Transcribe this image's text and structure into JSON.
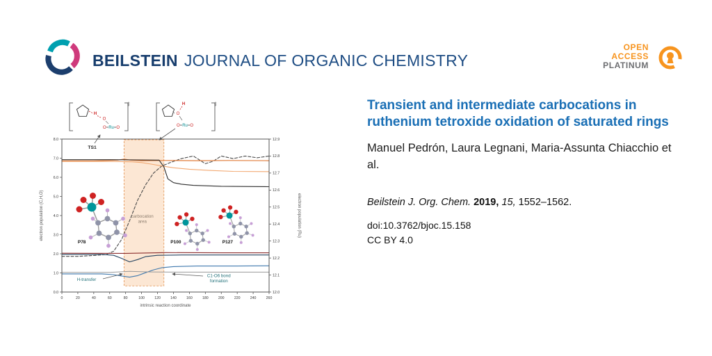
{
  "header": {
    "brand_bold": "BEILSTEIN",
    "brand_rest": "JOURNAL OF ORGANIC CHEMISTRY",
    "open_access": {
      "line1": "OPEN",
      "line2": "ACCESS",
      "line3": "PLATINUM"
    }
  },
  "article": {
    "title": "Transient and intermediate carbocations in ruthenium tetroxide oxidation of saturated rings",
    "authors": "Manuel Pedrón, Laura Legnani, Maria-Assunta Chi­acchio et al.",
    "citation": {
      "journal": "Beilstein J. Org. Chem.",
      "year": "2019,",
      "volume": "15,",
      "pages": "1552–1562."
    },
    "doi": "doi:10.3762/bjoc.15.158",
    "license": "CC BY 4.0"
  },
  "colors": {
    "brand_blue": "#173d6d",
    "title_blue": "#1a6fb5",
    "access_orange": "#f7941e",
    "platinum_gray": "#6d6e71"
  },
  "figure": {
    "structure_labels": {
      "h": "H",
      "o": "O",
      "ru": "Ru",
      "dagger": "‡"
    }
  },
  "chart_data": {
    "type": "line",
    "title": "",
    "xlabel": "intrinsic reaction coordinate",
    "ylabel_left": "electron population (C,H,O)",
    "ylabel_right": "electron population (Ru)",
    "xlim": [
      0,
      260
    ],
    "ylim_left": [
      0,
      8
    ],
    "ylim_right": [
      12.0,
      12.9
    ],
    "grid": false,
    "legend": "none",
    "x_ticks": [
      0,
      20,
      40,
      60,
      80,
      100,
      120,
      140,
      160,
      180,
      200,
      220,
      240,
      260
    ],
    "y_ticks_left": [
      "0.0",
      "1.0",
      "2.0",
      "3.0",
      "4.0",
      "5.0",
      "6.0",
      "7.0",
      "8.0"
    ],
    "y_ticks_right": [
      "12.0",
      "12.1",
      "12.2",
      "12.3",
      "12.4",
      "12.5",
      "12.6",
      "12.7",
      "12.8",
      "12.9"
    ],
    "shaded_region": {
      "x0": 78,
      "x1": 128,
      "label": "carbocation area",
      "fill": "#fbe3cd",
      "border": "#e59b5f"
    },
    "series": [
      {
        "name": "ru-dashed-dark",
        "axis": "right",
        "color": "#4a4a4a",
        "dash": "4,2.5",
        "width": 1.1,
        "x": [
          0,
          20,
          40,
          55,
          65,
          75,
          85,
          95,
          105,
          115,
          125,
          135,
          150,
          165,
          180,
          190,
          200,
          215,
          230,
          245,
          260
        ],
        "y": [
          12.21,
          12.21,
          12.215,
          12.22,
          12.24,
          12.31,
          12.42,
          12.54,
          12.63,
          12.7,
          12.74,
          12.76,
          12.785,
          12.8,
          12.755,
          12.77,
          12.8,
          12.785,
          12.8,
          12.79,
          12.8
        ]
      },
      {
        "name": "orange-upper-flat",
        "axis": "left",
        "color": "#e07b39",
        "width": 1.2,
        "x": [
          0,
          40,
          70,
          78,
          86,
          100,
          130,
          170,
          210,
          260
        ],
        "y": [
          6.86,
          6.86,
          6.9,
          6.95,
          6.9,
          6.87,
          6.88,
          6.87,
          6.88,
          6.87
        ]
      },
      {
        "name": "orange-descending",
        "axis": "left",
        "color": "#f2a76f",
        "width": 1.1,
        "x": [
          0,
          60,
          88,
          100,
          112,
          126,
          140,
          160,
          185,
          215,
          260
        ],
        "y": [
          6.83,
          6.83,
          6.81,
          6.77,
          6.69,
          6.59,
          6.5,
          6.42,
          6.36,
          6.31,
          6.3
        ]
      },
      {
        "name": "black-step-down",
        "axis": "left",
        "color": "#2b2b2b",
        "width": 1.1,
        "x": [
          0,
          60,
          100,
          122,
          128,
          133,
          140,
          150,
          165,
          200,
          260
        ],
        "y": [
          6.92,
          6.92,
          6.91,
          6.9,
          6.55,
          5.92,
          5.72,
          5.64,
          5.58,
          5.53,
          5.51
        ]
      },
      {
        "name": "navy-dip",
        "axis": "left",
        "color": "#24425f",
        "width": 1.1,
        "x": [
          0,
          50,
          65,
          75,
          85,
          95,
          105,
          120,
          150,
          200,
          260
        ],
        "y": [
          1.97,
          1.97,
          1.92,
          1.76,
          1.58,
          1.7,
          1.85,
          1.92,
          1.94,
          1.94,
          1.94
        ]
      },
      {
        "name": "dark-red-flat",
        "axis": "left",
        "color": "#8c2d2d",
        "width": 1.1,
        "x": [
          0,
          80,
          130,
          200,
          260
        ],
        "y": [
          2.03,
          2.02,
          2.06,
          2.05,
          2.05
        ]
      },
      {
        "name": "blue-rising",
        "axis": "left",
        "color": "#3c77ad",
        "width": 1.1,
        "x": [
          0,
          50,
          65,
          75,
          85,
          95,
          105,
          115,
          125,
          140,
          170,
          220,
          260
        ],
        "y": [
          0.95,
          0.95,
          0.91,
          0.84,
          0.78,
          0.86,
          1.01,
          1.16,
          1.27,
          1.33,
          1.36,
          1.36,
          1.37
        ]
      },
      {
        "name": "gray-flat",
        "axis": "left",
        "color": "#9a9a9a",
        "width": 1.0,
        "x": [
          0,
          60,
          85,
          110,
          150,
          260
        ],
        "y": [
          1.03,
          1.03,
          1.08,
          1.05,
          1.04,
          1.04
        ]
      }
    ],
    "annotations": [
      {
        "id": "ts1",
        "lines": [
          "TS1"
        ],
        "x": 38,
        "y": 7.5,
        "size": 6.8,
        "color": "#222222",
        "bold": true
      },
      {
        "id": "carbocation-area",
        "lines": [
          "carbocation",
          "area"
        ],
        "x": 101,
        "y": 3.9,
        "size": 6.2,
        "color": "#8d7e6e",
        "bold": false
      },
      {
        "id": "h-transfer",
        "lines": [
          "H-transfer"
        ],
        "x": 31,
        "y": 0.58,
        "size": 6.2,
        "color": "#1f6f78",
        "bold": false
      },
      {
        "id": "c1-o6-bond-formation",
        "lines": [
          "C1-O6 bond",
          "formation"
        ],
        "x": 197,
        "y": 0.78,
        "size": 6.2,
        "color": "#1f6f78",
        "bold": false
      },
      {
        "id": "p78",
        "lines": [
          "P78"
        ],
        "x": 25,
        "y": 2.55,
        "size": 6.5,
        "color": "#111111",
        "bold": true
      },
      {
        "id": "p100",
        "lines": [
          "P100"
        ],
        "x": 143,
        "y": 2.55,
        "size": 6.5,
        "color": "#111111",
        "bold": true
      },
      {
        "id": "p127",
        "lines": [
          "P127"
        ],
        "x": 208,
        "y": 2.55,
        "size": 6.5,
        "color": "#111111",
        "bold": true
      }
    ]
  }
}
